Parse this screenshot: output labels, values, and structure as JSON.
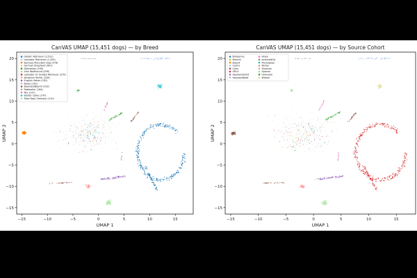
{
  "chart_data": [
    {
      "type": "scatter",
      "title": "CanVAS UMAP (15,451 dogs) — by Breed",
      "xlabel": "UMAP 1",
      "ylabel": "UMAP 2",
      "xlim": [
        -16,
        18.5
      ],
      "ylim": [
        -16.5,
        21.5
      ],
      "xticks": [
        -15,
        -10,
        -5,
        0,
        5,
        10,
        15
      ],
      "yticks": [
        -15,
        -10,
        -5,
        0,
        5,
        10,
        15,
        20
      ],
      "grid": false,
      "legend_position": "top-left",
      "legend": [
        {
          "label": "Golden Retriever (3,531)",
          "color": "#1f77b4"
        },
        {
          "label": "Labrador Retriever (1,429)",
          "color": "#aec7e8"
        },
        {
          "label": "Bernese Mountain Dog (576)",
          "color": "#ff7f0e"
        },
        {
          "label": "German Shepherd (401)",
          "color": "#ffbb78"
        },
        {
          "label": "Dalmatian (339)",
          "color": "#2ca02c"
        },
        {
          "label": "Irish Wolfhound (296)",
          "color": "#98df8a"
        },
        {
          "label": "Labrador Or Golden Retriever (279)",
          "color": "#d62728"
        },
        {
          "label": "Yorkshire Terrier (238)",
          "color": "#ff9896"
        },
        {
          "label": "English Setter (202)",
          "color": "#9467bd"
        },
        {
          "label": "Boxer (201)",
          "color": "#c5b0d5"
        },
        {
          "label": "Bearded/Beardi (192)",
          "color": "#8c564b"
        },
        {
          "label": "Rottweiler (164)",
          "color": "#c49c94"
        },
        {
          "label": "Mix (147)",
          "color": "#e377c2"
        },
        {
          "label": "Border Collie (147)",
          "color": "#17becf"
        },
        {
          "label": "Total Dog Chemotyi (110)",
          "color": "#9edae5"
        }
      ]
    },
    {
      "type": "scatter",
      "title": "CanVAS UMAP (15,451 dogs) — by Source Cohort",
      "xlabel": "UMAP 1",
      "ylabel": "UMAP 2",
      "xlim": [
        -16,
        18.5
      ],
      "ylim": [
        -16.5,
        21.5
      ],
      "xticks": [
        -15,
        -10,
        -5,
        0,
        5,
        10,
        15
      ],
      "yticks": [
        -15,
        -10,
        -5,
        0,
        5,
        10,
        15,
        20
      ],
      "grid": false,
      "legend_position": "top-left",
      "legend": [
        {
          "label": "Bimpenvo",
          "color": "#1f77b4"
        },
        {
          "label": "Bianchi",
          "color": "#bcbd22"
        },
        {
          "label": "Boesit",
          "color": "#ff7f0e"
        },
        {
          "label": "Cairns",
          "color": "#aec7e8"
        },
        {
          "label": "Chen",
          "color": "#8c564b"
        },
        {
          "label": "GRLS",
          "color": "#d62728"
        },
        {
          "label": "Hayward2016",
          "color": "#9467bd"
        },
        {
          "label": "HaywardDeaf",
          "color": "#c5b0d5"
        },
        {
          "label": "Hsien",
          "color": "#e377c2"
        },
        {
          "label": "JenkinsNGA",
          "color": "#7f7f7f"
        },
        {
          "label": "Plemopkee",
          "color": "#17becf"
        },
        {
          "label": "Parker",
          "color": "#c49c94"
        },
        {
          "label": "Shannon",
          "color": "#ff9896"
        },
        {
          "label": "Sparsio",
          "color": "#98df8a"
        },
        {
          "label": "Unknown",
          "color": "#2ca02c"
        },
        {
          "label": "Wiener",
          "color": "#dbdb8d"
        }
      ]
    }
  ]
}
